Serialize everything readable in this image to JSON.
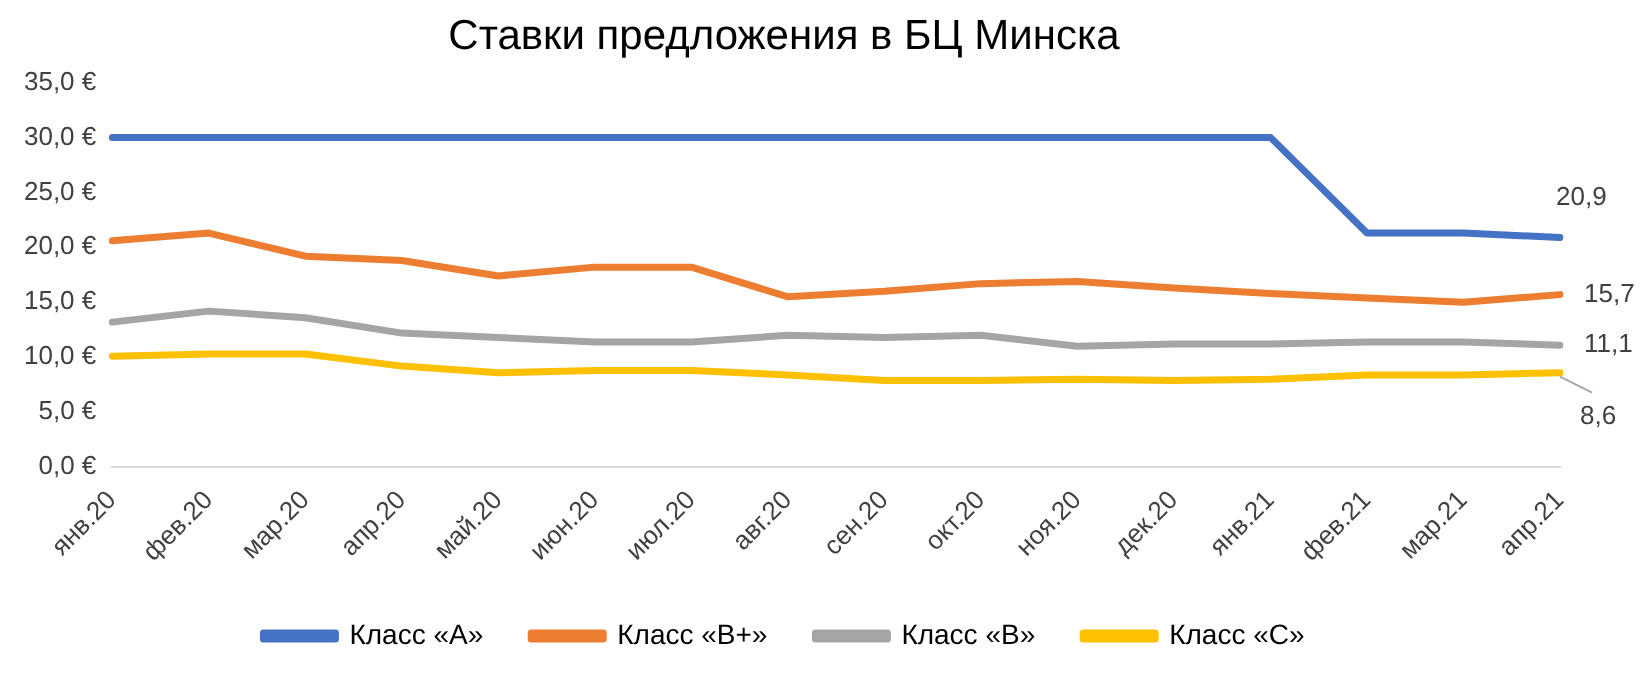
{
  "chart_data": {
    "type": "line",
    "title": "Ставки предложения в БЦ Минска",
    "categories": [
      "янв.20",
      "фев.20",
      "мар.20",
      "апр.20",
      "май.20",
      "июн.20",
      "июл.20",
      "авг.20",
      "сен.20",
      "окт.20",
      "ноя.20",
      "дек.20",
      "янв.21",
      "фев.21",
      "мар.21",
      "апр.21"
    ],
    "series": [
      {
        "name": "Класс «A»",
        "color": "#4472c4",
        "values": [
          30,
          30,
          30,
          30,
          30,
          30,
          30,
          30,
          30,
          30,
          30,
          30,
          30,
          21.3,
          21.3,
          20.9
        ],
        "value_labels": [
          null,
          null,
          null,
          null,
          null,
          null,
          null,
          null,
          null,
          null,
          null,
          null,
          null,
          null,
          null,
          "20,9"
        ]
      },
      {
        "name": "Класс «B+»",
        "color": "#ed7d31",
        "values": [
          20.6,
          21.3,
          19.2,
          18.8,
          17.4,
          18.2,
          18.2,
          15.5,
          16.0,
          16.7,
          16.9,
          16.3,
          15.8,
          15.4,
          15.0,
          15.7
        ],
        "value_labels": [
          null,
          null,
          null,
          null,
          null,
          null,
          null,
          null,
          null,
          null,
          null,
          null,
          null,
          null,
          null,
          "15,7"
        ]
      },
      {
        "name": "Класс «B»",
        "color": "#a5a5a5",
        "values": [
          13.2,
          14.2,
          13.6,
          12.2,
          11.8,
          11.4,
          11.4,
          12.0,
          11.8,
          12.0,
          11.0,
          11.2,
          11.2,
          11.4,
          11.4,
          11.1
        ],
        "value_labels": [
          null,
          null,
          null,
          null,
          null,
          null,
          null,
          null,
          null,
          null,
          null,
          null,
          null,
          null,
          null,
          "11,1"
        ]
      },
      {
        "name": "Класс «C»",
        "color": "#ffc000",
        "values": [
          10.1,
          10.3,
          10.3,
          9.2,
          8.6,
          8.8,
          8.8,
          8.4,
          7.9,
          7.9,
          8.0,
          7.9,
          8.0,
          8.4,
          8.4,
          8.6
        ],
        "value_labels": [
          null,
          null,
          null,
          null,
          null,
          null,
          null,
          null,
          null,
          null,
          null,
          null,
          null,
          null,
          null,
          "8,6"
        ]
      }
    ],
    "ylim": [
      0,
      35
    ],
    "yticks": [
      {
        "value": 0,
        "label": "0,0 €"
      },
      {
        "value": 5,
        "label": "5,0 €"
      },
      {
        "value": 10,
        "label": "10,0 €"
      },
      {
        "value": 15,
        "label": "15,0 €"
      },
      {
        "value": 20,
        "label": "20,0 €"
      },
      {
        "value": 25,
        "label": "25,0 €"
      },
      {
        "value": 30,
        "label": "30,0 €"
      },
      {
        "value": 35,
        "label": "35,0 €"
      }
    ],
    "grid": false,
    "legend": "bottom",
    "marker": "none",
    "line_style": "solid"
  }
}
